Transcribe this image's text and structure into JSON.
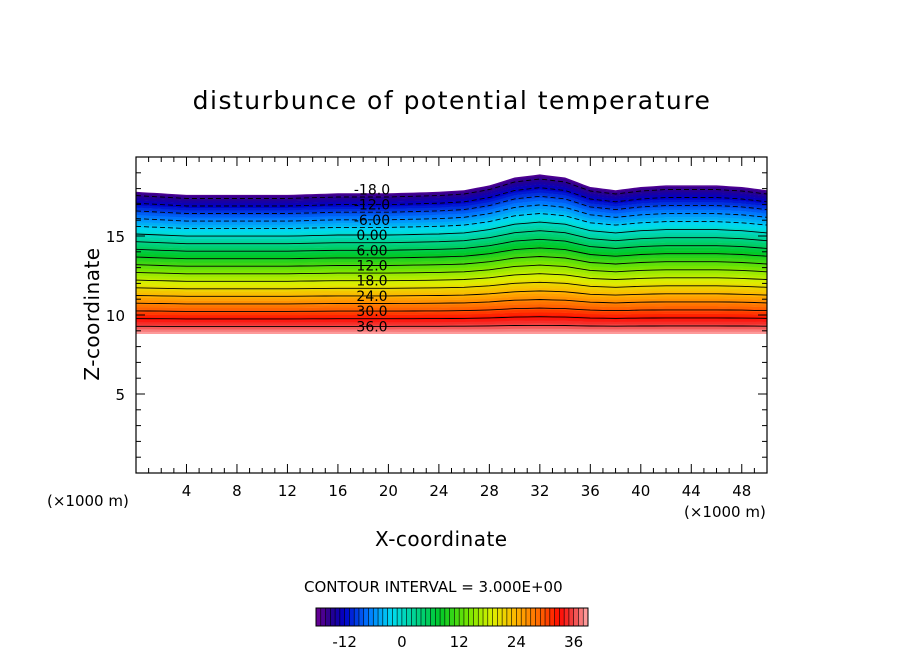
{
  "chart_data": {
    "type": "contour",
    "title": "disturbunce of potential temperature",
    "xlabel": "X-coordinate",
    "ylabel": "Z-coordinate",
    "x_unit_label": "(×1000 m)",
    "xlim": [
      0,
      50
    ],
    "ylim": [
      0,
      20
    ],
    "x_ticks": [
      4,
      8,
      12,
      16,
      20,
      24,
      28,
      32,
      36,
      40,
      44,
      48
    ],
    "y_ticks": [
      5,
      10,
      15
    ],
    "contour_interval_label": "CONTOUR INTERVAL = 3.000E+00",
    "contour_interval": 3.0,
    "field_range": [
      -18,
      39
    ],
    "field_bottom_z": 8.8,
    "field_top_z_profile": {
      "x": [
        0,
        4,
        8,
        12,
        16,
        20,
        24,
        26,
        28,
        30,
        32,
        34,
        36,
        38,
        40,
        42,
        44,
        46,
        48,
        50
      ],
      "z": [
        17.8,
        17.6,
        17.6,
        17.6,
        17.7,
        17.7,
        17.8,
        17.9,
        18.2,
        18.7,
        18.9,
        18.7,
        18.1,
        17.9,
        18.1,
        18.2,
        18.2,
        18.2,
        18.1,
        17.9
      ]
    },
    "contour_labels": [
      {
        "text": "-18.0",
        "level": -18
      },
      {
        "text": "-12.0",
        "level": -12
      },
      {
        "text": "-6.00",
        "level": -6
      },
      {
        "text": "0.00",
        "level": 0
      },
      {
        "text": "6.00",
        "level": 6
      },
      {
        "text": "12.0",
        "level": 12
      },
      {
        "text": "18.0",
        "level": 18
      },
      {
        "text": "24.0",
        "level": 24
      },
      {
        "text": "30.0",
        "level": 30
      },
      {
        "text": "36.0",
        "level": 36
      }
    ],
    "colorbar": {
      "tick_labels": [
        "-12",
        "0",
        "12",
        "24",
        "36"
      ],
      "tick_values": [
        -12,
        0,
        12,
        24,
        36
      ],
      "range": [
        -18,
        39
      ]
    }
  }
}
